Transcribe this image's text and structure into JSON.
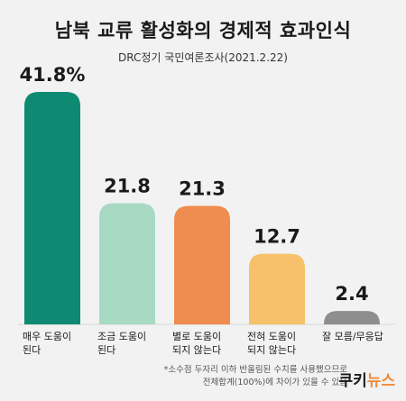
{
  "title": "남북 교류 활성화의 경제적 효과인식",
  "subtitle": "DRC정기 국민여론조사(2021.2.22)",
  "footnote": {
    "line1": "*소수점 두자리 이하 반올림된 수치를 사용했으므로",
    "line2": "전체합계(100%)에 차이가 있을 수 있음"
  },
  "logo": {
    "part1": "쿠키",
    "part2": "뉴스"
  },
  "chart_data": {
    "type": "bar",
    "categories": [
      [
        "매우 도움이",
        "된다"
      ],
      [
        "조금 도움이",
        "된다"
      ],
      [
        "별로 도움이",
        "되지 않는다"
      ],
      [
        "전혀 도움이",
        "되지 않는다"
      ],
      [
        "잘 모름/무응답"
      ]
    ],
    "values": [
      41.8,
      21.8,
      21.3,
      12.7,
      2.4
    ],
    "value_labels": [
      "41.8%",
      "21.8",
      "21.3",
      "12.7",
      "2.4"
    ],
    "colors": [
      "#0f8a72",
      "#a8d9c3",
      "#ef8c4f",
      "#f6c16a",
      "#8e8e8e"
    ],
    "ylim": [
      0,
      41.8
    ],
    "grid": false,
    "legend": "none"
  }
}
